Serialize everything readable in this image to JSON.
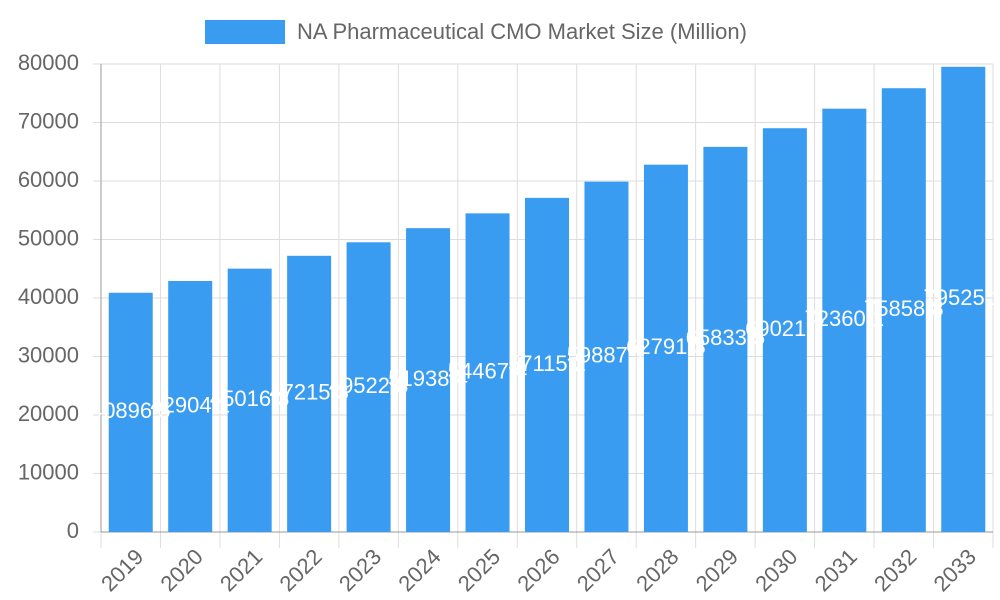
{
  "chart_data": {
    "type": "bar",
    "categories": [
      "2019",
      "2020",
      "2021",
      "2022",
      "2023",
      "2024",
      "2025",
      "2026",
      "2027",
      "2028",
      "2029",
      "2030",
      "2031",
      "2032",
      "2033"
    ],
    "series": [
      {
        "name": "NA Pharmaceutical CMO Market Size (Million)",
        "color": "#399cf0",
        "values": [
          40896.5,
          42904.1,
          45016.3,
          47215.3,
          49522.8,
          51938.4,
          54467.4,
          57115.2,
          59887.7,
          62791.3,
          65833.5,
          69021.7,
          72360.1,
          75858.8,
          79525.1
        ]
      }
    ],
    "ylim": [
      0,
      80000
    ],
    "yticks": [
      0,
      10000,
      20000,
      30000,
      40000,
      50000,
      60000,
      70000,
      80000
    ],
    "grid": true,
    "legend": "top"
  }
}
